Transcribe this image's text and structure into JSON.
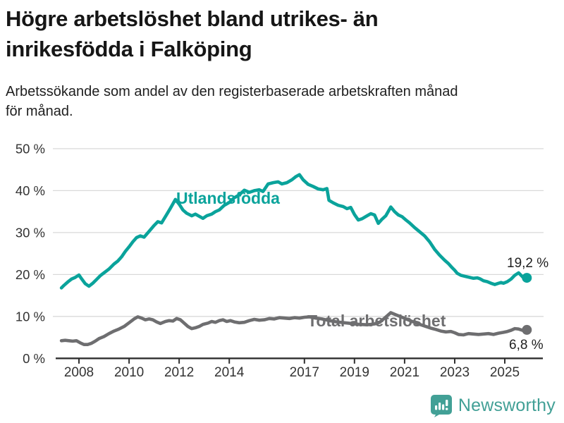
{
  "header": {
    "title": "Högre arbetslöshet bland utrikes- än\ninrikesfödda i Falköping",
    "subtitle": "Arbetssökande som andel av den registerbaserade arbetskraften månad\nför månad."
  },
  "footer": {
    "brand": "Newsworthy",
    "brand_color": "#42a096"
  },
  "colors": {
    "grid": "#d9d9d9",
    "axis": "#2f2f2f",
    "tick_text": "#333333"
  },
  "chart_data": {
    "type": "line",
    "title": "Högre arbetslöshet bland utrikes- än inrikesfödda i Falköping",
    "subtitle": "Arbetssökande som andel av den registerbaserade arbetskraften månad för månad.",
    "grid": true,
    "legend_position": "inline-labels",
    "x_axis": {
      "range": [
        2007.1,
        2026.2
      ],
      "ticks": [
        {
          "v": 2008,
          "label": "2008"
        },
        {
          "v": 2010,
          "label": "2010"
        },
        {
          "v": 2012,
          "label": "2012"
        },
        {
          "v": 2014,
          "label": "2014"
        },
        {
          "v": 2017,
          "label": "2017"
        },
        {
          "v": 2019,
          "label": "2019"
        },
        {
          "v": 2021,
          "label": "2021"
        },
        {
          "v": 2023,
          "label": "2023"
        },
        {
          "v": 2025,
          "label": "2025"
        }
      ]
    },
    "y_axis": {
      "range": [
        0,
        50
      ],
      "ticks": [
        {
          "v": 0,
          "label": "0 %"
        },
        {
          "v": 10,
          "label": "10 %"
        },
        {
          "v": 20,
          "label": "20 %"
        },
        {
          "v": 30,
          "label": "30 %"
        },
        {
          "v": 40,
          "label": "40 %"
        },
        {
          "v": 50,
          "label": "50 %"
        }
      ]
    },
    "series": [
      {
        "name": "Utlandsfödda",
        "color": "#0aa39b",
        "end_label": "19,2 %",
        "end_value": 19.2,
        "points": [
          [
            2007.3,
            16.8
          ],
          [
            2007.4,
            17.4
          ],
          [
            2007.55,
            18.2
          ],
          [
            2007.7,
            18.9
          ],
          [
            2007.85,
            19.3
          ],
          [
            2008.0,
            19.9
          ],
          [
            2008.1,
            19.0
          ],
          [
            2008.25,
            17.8
          ],
          [
            2008.4,
            17.2
          ],
          [
            2008.55,
            17.9
          ],
          [
            2008.7,
            18.8
          ],
          [
            2008.85,
            19.7
          ],
          [
            2009.0,
            20.4
          ],
          [
            2009.2,
            21.3
          ],
          [
            2009.4,
            22.5
          ],
          [
            2009.55,
            23.2
          ],
          [
            2009.7,
            24.2
          ],
          [
            2009.85,
            25.5
          ],
          [
            2010.0,
            26.6
          ],
          [
            2010.15,
            27.8
          ],
          [
            2010.3,
            28.8
          ],
          [
            2010.45,
            29.2
          ],
          [
            2010.6,
            28.9
          ],
          [
            2010.8,
            30.3
          ],
          [
            2011.0,
            31.7
          ],
          [
            2011.15,
            32.6
          ],
          [
            2011.3,
            32.3
          ],
          [
            2011.5,
            34.3
          ],
          [
            2011.65,
            35.8
          ],
          [
            2011.85,
            37.9
          ],
          [
            2012.0,
            36.8
          ],
          [
            2012.15,
            35.4
          ],
          [
            2012.3,
            34.6
          ],
          [
            2012.5,
            34.0
          ],
          [
            2012.65,
            34.4
          ],
          [
            2012.8,
            33.9
          ],
          [
            2012.95,
            33.4
          ],
          [
            2013.1,
            34.0
          ],
          [
            2013.3,
            34.4
          ],
          [
            2013.45,
            35.0
          ],
          [
            2013.6,
            35.4
          ],
          [
            2013.8,
            36.5
          ],
          [
            2014.0,
            37.2
          ],
          [
            2014.2,
            38.3
          ],
          [
            2014.4,
            39.0
          ],
          [
            2014.6,
            40.1
          ],
          [
            2014.8,
            39.6
          ],
          [
            2015.0,
            40.0
          ],
          [
            2015.2,
            40.2
          ],
          [
            2015.35,
            39.8
          ],
          [
            2015.55,
            41.6
          ],
          [
            2015.75,
            41.9
          ],
          [
            2015.95,
            42.1
          ],
          [
            2016.1,
            41.6
          ],
          [
            2016.3,
            41.9
          ],
          [
            2016.5,
            42.6
          ],
          [
            2016.65,
            43.3
          ],
          [
            2016.8,
            43.8
          ],
          [
            2016.95,
            42.6
          ],
          [
            2017.15,
            41.5
          ],
          [
            2017.35,
            41.0
          ],
          [
            2017.55,
            40.4
          ],
          [
            2017.75,
            40.2
          ],
          [
            2017.9,
            40.5
          ],
          [
            2017.98,
            37.7
          ],
          [
            2018.15,
            37.1
          ],
          [
            2018.35,
            36.5
          ],
          [
            2018.55,
            36.2
          ],
          [
            2018.7,
            35.7
          ],
          [
            2018.85,
            36.0
          ],
          [
            2019.0,
            34.3
          ],
          [
            2019.15,
            33.0
          ],
          [
            2019.3,
            33.3
          ],
          [
            2019.5,
            34.0
          ],
          [
            2019.65,
            34.5
          ],
          [
            2019.8,
            34.2
          ],
          [
            2019.95,
            32.2
          ],
          [
            2020.1,
            33.2
          ],
          [
            2020.25,
            34.0
          ],
          [
            2020.45,
            36.1
          ],
          [
            2020.6,
            35.0
          ],
          [
            2020.75,
            34.2
          ],
          [
            2020.9,
            33.8
          ],
          [
            2021.05,
            33.0
          ],
          [
            2021.2,
            32.3
          ],
          [
            2021.4,
            31.2
          ],
          [
            2021.6,
            30.2
          ],
          [
            2021.8,
            29.2
          ],
          [
            2022.0,
            27.8
          ],
          [
            2022.2,
            26.0
          ],
          [
            2022.4,
            24.6
          ],
          [
            2022.6,
            23.4
          ],
          [
            2022.75,
            22.6
          ],
          [
            2022.9,
            21.6
          ],
          [
            2023.0,
            21.0
          ],
          [
            2023.1,
            20.3
          ],
          [
            2023.25,
            19.8
          ],
          [
            2023.45,
            19.5
          ],
          [
            2023.6,
            19.3
          ],
          [
            2023.75,
            19.1
          ],
          [
            2023.9,
            19.2
          ],
          [
            2024.0,
            19.0
          ],
          [
            2024.15,
            18.5
          ],
          [
            2024.3,
            18.3
          ],
          [
            2024.45,
            17.9
          ],
          [
            2024.6,
            17.6
          ],
          [
            2024.75,
            17.9
          ],
          [
            2024.85,
            18.1
          ],
          [
            2024.95,
            17.9
          ],
          [
            2025.1,
            18.3
          ],
          [
            2025.25,
            18.9
          ],
          [
            2025.4,
            19.8
          ],
          [
            2025.55,
            20.4
          ],
          [
            2025.65,
            19.8
          ],
          [
            2025.75,
            19.2
          ],
          [
            2025.83,
            19.0
          ],
          [
            2025.88,
            19.2
          ]
        ]
      },
      {
        "name": "Total arbetslöshet",
        "color": "#6e6e70",
        "end_label": "6,8 %",
        "end_value": 6.8,
        "points": [
          [
            2007.3,
            4.2
          ],
          [
            2007.45,
            4.3
          ],
          [
            2007.6,
            4.2
          ],
          [
            2007.75,
            4.1
          ],
          [
            2007.9,
            4.2
          ],
          [
            2008.05,
            3.7
          ],
          [
            2008.2,
            3.3
          ],
          [
            2008.35,
            3.3
          ],
          [
            2008.5,
            3.6
          ],
          [
            2008.65,
            4.1
          ],
          [
            2008.8,
            4.7
          ],
          [
            2009.0,
            5.2
          ],
          [
            2009.2,
            5.9
          ],
          [
            2009.4,
            6.5
          ],
          [
            2009.6,
            7.0
          ],
          [
            2009.8,
            7.6
          ],
          [
            2010.0,
            8.5
          ],
          [
            2010.2,
            9.4
          ],
          [
            2010.35,
            9.9
          ],
          [
            2010.5,
            9.6
          ],
          [
            2010.65,
            9.2
          ],
          [
            2010.8,
            9.4
          ],
          [
            2010.95,
            9.2
          ],
          [
            2011.1,
            8.7
          ],
          [
            2011.25,
            8.3
          ],
          [
            2011.45,
            8.8
          ],
          [
            2011.6,
            9.0
          ],
          [
            2011.75,
            8.9
          ],
          [
            2011.9,
            9.5
          ],
          [
            2012.05,
            9.2
          ],
          [
            2012.2,
            8.4
          ],
          [
            2012.35,
            7.6
          ],
          [
            2012.5,
            7.1
          ],
          [
            2012.65,
            7.3
          ],
          [
            2012.8,
            7.6
          ],
          [
            2012.95,
            8.1
          ],
          [
            2013.15,
            8.4
          ],
          [
            2013.3,
            8.8
          ],
          [
            2013.45,
            8.6
          ],
          [
            2013.6,
            9.0
          ],
          [
            2013.75,
            9.2
          ],
          [
            2013.9,
            8.8
          ],
          [
            2014.05,
            9.0
          ],
          [
            2014.2,
            8.7
          ],
          [
            2014.4,
            8.5
          ],
          [
            2014.6,
            8.6
          ],
          [
            2014.8,
            9.0
          ],
          [
            2015.0,
            9.3
          ],
          [
            2015.2,
            9.1
          ],
          [
            2015.4,
            9.2
          ],
          [
            2015.6,
            9.5
          ],
          [
            2015.8,
            9.4
          ],
          [
            2016.0,
            9.7
          ],
          [
            2016.2,
            9.6
          ],
          [
            2016.4,
            9.5
          ],
          [
            2016.6,
            9.7
          ],
          [
            2016.8,
            9.6
          ],
          [
            2017.0,
            9.8
          ],
          [
            2017.2,
            9.9
          ],
          [
            2017.45,
            9.6
          ],
          [
            2017.7,
            9.4
          ],
          [
            2018.0,
            9.0
          ],
          [
            2018.3,
            8.7
          ],
          [
            2018.6,
            8.5
          ],
          [
            2018.9,
            8.3
          ],
          [
            2019.2,
            8.1
          ],
          [
            2019.5,
            8.0
          ],
          [
            2019.8,
            8.2
          ],
          [
            2020.0,
            8.6
          ],
          [
            2020.2,
            9.6
          ],
          [
            2020.45,
            10.9
          ],
          [
            2020.65,
            10.4
          ],
          [
            2020.9,
            9.8
          ],
          [
            2021.1,
            9.3
          ],
          [
            2021.35,
            8.7
          ],
          [
            2021.6,
            8.1
          ],
          [
            2021.85,
            7.6
          ],
          [
            2022.05,
            7.2
          ],
          [
            2022.25,
            6.9
          ],
          [
            2022.45,
            6.5
          ],
          [
            2022.65,
            6.3
          ],
          [
            2022.85,
            6.4
          ],
          [
            2023.0,
            6.1
          ],
          [
            2023.15,
            5.7
          ],
          [
            2023.35,
            5.6
          ],
          [
            2023.55,
            5.9
          ],
          [
            2023.75,
            5.8
          ],
          [
            2023.95,
            5.7
          ],
          [
            2024.15,
            5.8
          ],
          [
            2024.35,
            5.9
          ],
          [
            2024.55,
            5.7
          ],
          [
            2024.75,
            6.0
          ],
          [
            2024.95,
            6.2
          ],
          [
            2025.1,
            6.4
          ],
          [
            2025.25,
            6.7
          ],
          [
            2025.4,
            7.1
          ],
          [
            2025.55,
            7.0
          ],
          [
            2025.7,
            6.7
          ],
          [
            2025.8,
            6.7
          ],
          [
            2025.88,
            6.8
          ]
        ]
      }
    ]
  }
}
